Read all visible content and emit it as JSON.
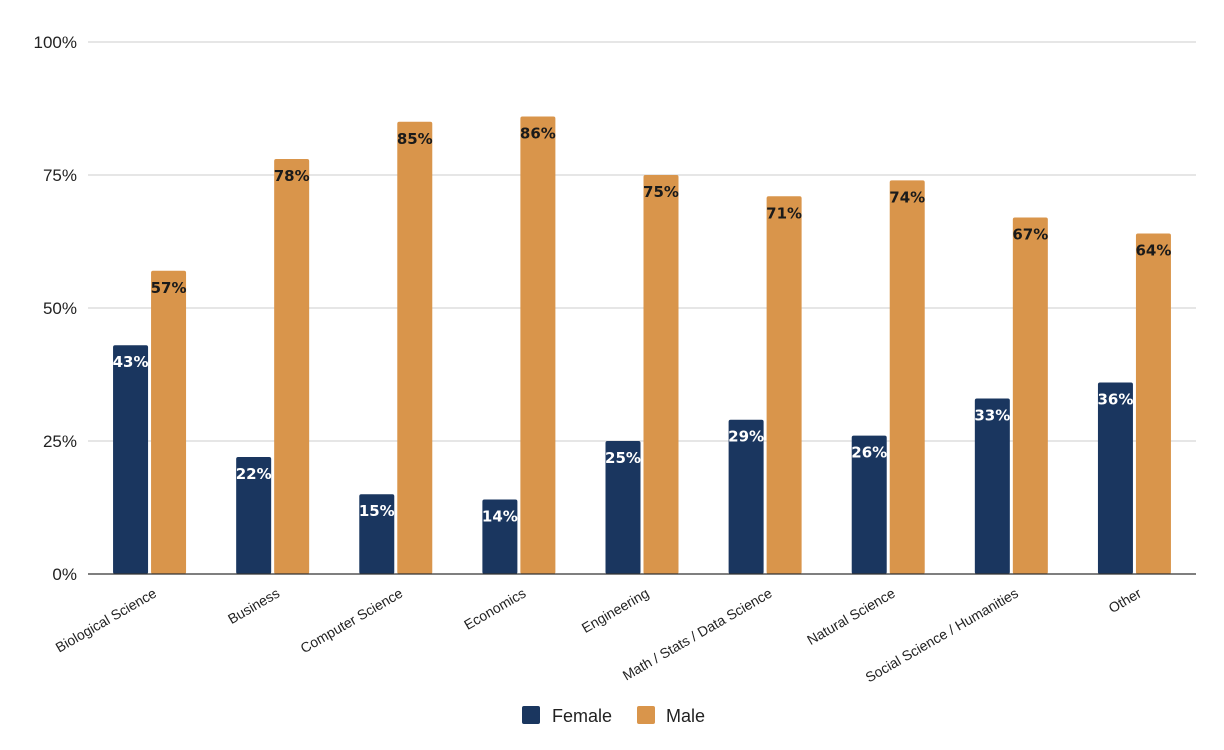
{
  "chart_data": {
    "type": "bar",
    "categories": [
      "Biological Science",
      "Business",
      "Computer Science",
      "Economics",
      "Engineering",
      "Math / Stats / Data Science",
      "Natural Science",
      "Social Science / Humanities",
      "Other"
    ],
    "series": [
      {
        "name": "Female",
        "color": "#1a365f",
        "values": [
          43,
          22,
          15,
          14,
          25,
          29,
          26,
          33,
          36
        ]
      },
      {
        "name": "Male",
        "color": "#d9954b",
        "values": [
          57,
          78,
          85,
          86,
          75,
          71,
          74,
          67,
          64
        ]
      }
    ],
    "data_labels": {
      "Female": [
        "43%",
        "22%",
        "15%",
        "14%",
        "25%",
        "29%",
        "26%",
        "33%",
        "36%"
      ],
      "Male": [
        "57%",
        "78%",
        "85%",
        "86%",
        "75%",
        "71%",
        "74%",
        "67%",
        "64%"
      ]
    },
    "y_ticks": [
      {
        "value": 0,
        "label": "0%"
      },
      {
        "value": 25,
        "label": "25%"
      },
      {
        "value": 50,
        "label": "50%"
      },
      {
        "value": 75,
        "label": "75%"
      },
      {
        "value": 100,
        "label": "100%"
      }
    ],
    "ylim": [
      0,
      100
    ],
    "title": "",
    "xlabel": "",
    "ylabel": "",
    "grid": true,
    "legend_position": "bottom-center"
  }
}
